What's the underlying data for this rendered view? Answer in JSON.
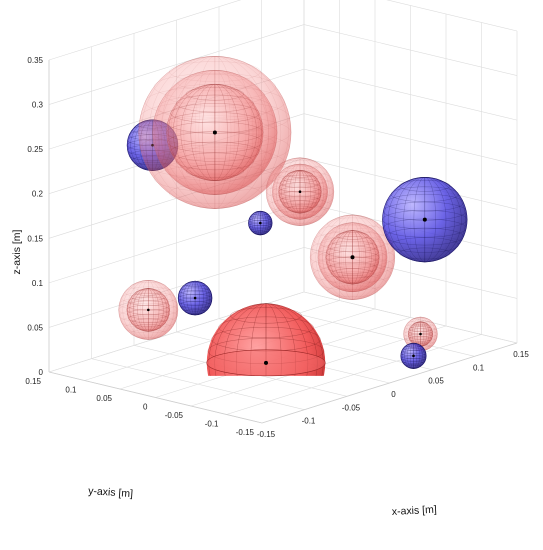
{
  "chart_data": {
    "type": "scatter",
    "subtype": "3d-spheres",
    "title": "",
    "xlabel": "x-axis [m]",
    "ylabel": "y-axis [m]",
    "zlabel": "z-axis [m]",
    "xlim": [
      -0.15,
      0.15
    ],
    "ylim": [
      -0.15,
      0.15
    ],
    "zlim": [
      0,
      0.35
    ],
    "x_ticks": [
      "-0.15",
      "-0.1",
      "-0.05",
      "0",
      "0.05",
      "0.1",
      "0.15"
    ],
    "y_ticks": [
      "-0.15",
      "-0.1",
      "-0.05",
      "0",
      "0.05",
      "0.1",
      "0.15"
    ],
    "z_ticks": [
      "0",
      "0.05",
      "0.1",
      "0.15",
      "0.2",
      "0.25",
      "0.3",
      "0.35"
    ],
    "grid": true,
    "colors": {
      "red": "#ee4444",
      "blue": "#3030cc"
    },
    "series": [
      {
        "color": "red",
        "spheres": [
          {
            "x": -0.03,
            "y": 0.06,
            "z": 0.25,
            "r": 0.09,
            "shells": 3
          },
          {
            "x": 0.02,
            "y": 0.0,
            "z": 0.18,
            "r": 0.04,
            "shells": 3
          },
          {
            "x": 0.04,
            "y": -0.05,
            "z": 0.11,
            "r": 0.05,
            "shells": 3
          },
          {
            "x": -0.1,
            "y": 0.07,
            "z": 0.07,
            "r": 0.035,
            "shells": 2
          },
          {
            "x": -0.02,
            "y": 0.0,
            "z": 0.0,
            "r": 0.07,
            "shells": 1,
            "hemisphere": true
          },
          {
            "x": 0.12,
            "y": -0.05,
            "z": 0.0,
            "r": 0.02,
            "shells": 2
          }
        ]
      },
      {
        "color": "blue",
        "spheres": [
          {
            "x": -0.07,
            "y": 0.1,
            "z": 0.24,
            "r": 0.03
          },
          {
            "x": -0.01,
            "y": 0.02,
            "z": 0.15,
            "r": 0.014
          },
          {
            "x": 0.1,
            "y": -0.08,
            "z": 0.14,
            "r": 0.05
          },
          {
            "x": -0.07,
            "y": 0.04,
            "z": 0.08,
            "r": 0.02
          },
          {
            "x": 0.07,
            "y": -0.1,
            "z": 0.0,
            "r": 0.015
          }
        ]
      }
    ]
  }
}
